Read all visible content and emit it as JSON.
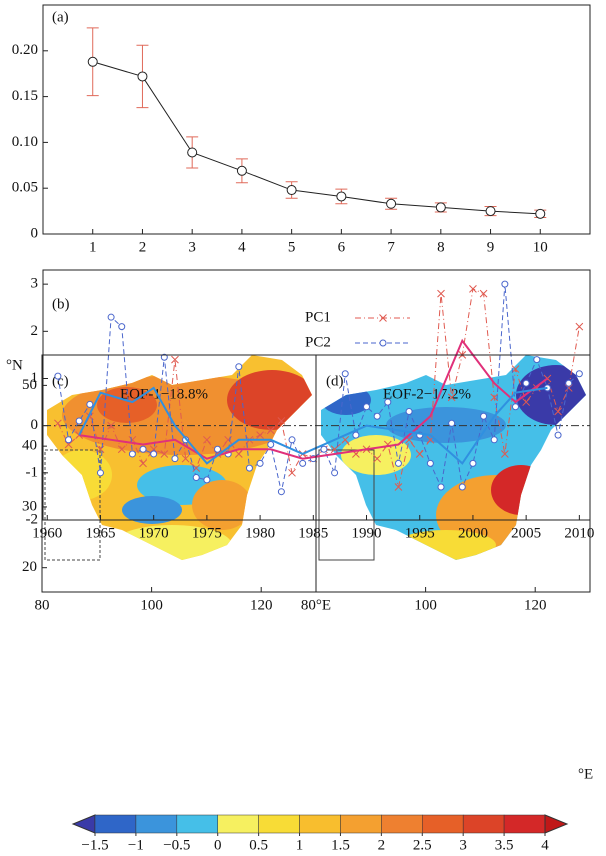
{
  "chart_data": [
    {
      "type": "errorbar",
      "title": "(a)",
      "x": [
        1,
        2,
        3,
        4,
        5,
        6,
        7,
        8,
        9,
        10
      ],
      "values": [
        0.188,
        0.172,
        0.089,
        0.069,
        0.048,
        0.041,
        0.033,
        0.029,
        0.025,
        0.022
      ],
      "errors": [
        0.037,
        0.034,
        0.017,
        0.013,
        0.009,
        0.008,
        0.006,
        0.005,
        0.005,
        0.004
      ],
      "color": "#222222",
      "error_color": "#e06a5a",
      "xlim": [
        0,
        11
      ],
      "ylim": [
        0,
        0.25
      ],
      "xticks": [
        1,
        2,
        3,
        4,
        5,
        6,
        7,
        8,
        9,
        10
      ],
      "yticks": [
        0,
        0.05,
        {
          "value": 0.1,
          "label": "0.10"
        },
        0.15,
        {
          "value": 0.2,
          "label": "0.20"
        }
      ]
    },
    {
      "type": "line",
      "title": "(b)",
      "x": [
        1961,
        1962,
        1963,
        1964,
        1965,
        1966,
        1967,
        1968,
        1969,
        1970,
        1971,
        1972,
        1973,
        1974,
        1975,
        1976,
        1977,
        1978,
        1979,
        1980,
        1981,
        1982,
        1983,
        1984,
        1985,
        1986,
        1987,
        1988,
        1989,
        1990,
        1991,
        1992,
        1993,
        1994,
        1995,
        1996,
        1997,
        1998,
        1999,
        2000,
        2001,
        2002,
        2003,
        2004,
        2005,
        2006,
        2007,
        2008,
        2009,
        2010
      ],
      "series": [
        {
          "name": "PC1",
          "color": "#e05a50",
          "marker": "x",
          "dash": "6 3 1 3",
          "values": [
            0.05,
            -0.4,
            -0.2,
            0.2,
            -0.5,
            0.0,
            -0.5,
            -0.3,
            -0.8,
            -0.5,
            -0.6,
            1.4,
            -0.7,
            -0.9,
            -0.3,
            -0.6,
            -0.3,
            -0.6,
            -0.3,
            -0.2,
            -0.1,
            0.1,
            -1.0,
            -0.6,
            -0.7,
            -0.5,
            -0.5,
            -0.3,
            -0.6,
            -0.5,
            -0.7,
            -0.4,
            -1.3,
            -0.3,
            -0.6,
            -0.3,
            2.8,
            0.6,
            1.5,
            2.9,
            2.8,
            0.6,
            -0.6,
            1.2,
            0.5,
            0.8,
            1.0,
            0.3,
            0.8,
            2.1
          ]
        },
        {
          "name": "PC2",
          "color": "#4a66cc",
          "marker": "circle",
          "dash": "5 3",
          "values": [
            1.05,
            -0.3,
            0.1,
            0.45,
            -1.0,
            2.3,
            2.1,
            -0.6,
            -0.5,
            -0.6,
            1.45,
            -0.7,
            -0.3,
            -1.1,
            -1.15,
            -0.5,
            -0.6,
            1.25,
            -0.9,
            -0.8,
            -0.4,
            -1.4,
            -0.3,
            -0.8,
            -0.7,
            -0.5,
            -1.0,
            1.1,
            -0.2,
            0.4,
            0.2,
            0.5,
            -0.8,
            0.3,
            -0.2,
            -0.8,
            -1.3,
            0.05,
            -1.3,
            -0.8,
            0.2,
            -0.3,
            3.0,
            0.4,
            0.9,
            1.4,
            0.8,
            -0.2,
            0.9,
            1.1
          ]
        },
        {
          "color": "#e0307a",
          "x": [
            1963,
            1966,
            1969,
            1972,
            1975,
            1978,
            1981,
            1984,
            1987,
            1990,
            1993,
            1996,
            1999,
            2002,
            2004,
            2007
          ],
          "values": [
            -0.2,
            -0.3,
            -0.4,
            -0.3,
            -0.7,
            -0.5,
            -0.5,
            -0.7,
            -0.6,
            -0.5,
            -0.4,
            0.2,
            1.8,
            0.9,
            0.5,
            1.0
          ]
        },
        {
          "color": "#3090e0",
          "x": [
            1963,
            1965,
            1968,
            1970,
            1972,
            1975,
            1978,
            1981,
            1984,
            1987,
            1990,
            1993,
            1996,
            1999,
            2002,
            2004,
            2007
          ],
          "values": [
            -0.2,
            0.7,
            0.5,
            0.8,
            0.0,
            -0.8,
            -0.3,
            -0.3,
            -0.6,
            -0.3,
            0.0,
            -0.1,
            -0.2,
            -0.8,
            0.2,
            0.7,
            0.8
          ]
        }
      ],
      "xlim": [
        1959.6,
        2011
      ],
      "ylim": [
        -2,
        3.3
      ],
      "xticks": [
        1960,
        1965,
        1970,
        1975,
        1980,
        1985,
        1990,
        1995,
        2000,
        2005,
        2010
      ],
      "yticks": [
        -2,
        -1,
        0,
        1,
        2,
        3
      ]
    },
    {
      "type": "map",
      "title": "(c)",
      "label": "EOF-1−18.8%",
      "y_unit": "°N",
      "xlim": [
        80,
        130
      ],
      "ylim": [
        16,
        55
      ],
      "xticks": [
        80,
        100,
        120
      ],
      "yticks": [
        20,
        30,
        40,
        50
      ]
    },
    {
      "type": "map",
      "title": "(d)",
      "label": "EOF-2−17.2%",
      "x_unit": "°E",
      "xlim": [
        80,
        130
      ],
      "ylim": [
        16,
        55
      ],
      "xticks": [
        {
          "value": 80,
          "label": "80°E"
        },
        100,
        120
      ]
    },
    {
      "type": "colorbar",
      "ticks": [
        {
          "value": -1.5,
          "label": "−1.5"
        },
        {
          "value": -1,
          "label": "−1"
        },
        {
          "value": -0.5,
          "label": "−0.5"
        },
        0,
        0.5,
        1,
        1.5,
        2,
        2.5,
        3,
        3.5,
        4
      ],
      "colors": [
        "#3a3aa8",
        "#2f66c8",
        "#3b94dc",
        "#45bfe8",
        "#f6f060",
        "#f8dc36",
        "#f8be2e",
        "#f4a030",
        "#ee8030",
        "#e66028",
        "#dc4428",
        "#d42828",
        "#c01818"
      ]
    }
  ]
}
